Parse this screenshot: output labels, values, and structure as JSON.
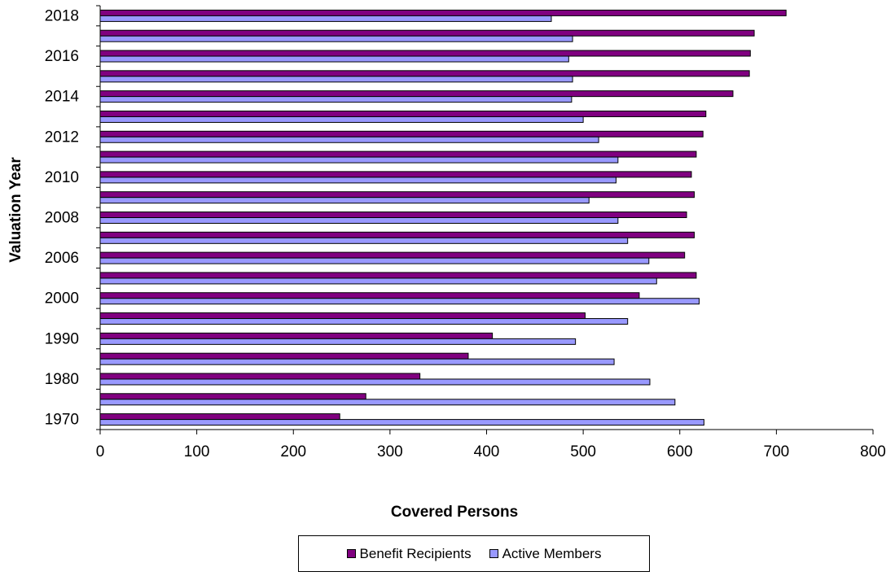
{
  "chart_data": {
    "type": "bar",
    "orientation": "horizontal",
    "title": "",
    "xlabel": "Covered Persons",
    "ylabel": "Valuation Year",
    "xlim": [
      0,
      800
    ],
    "x_ticks": [
      0,
      100,
      200,
      300,
      400,
      500,
      600,
      700,
      800
    ],
    "y_tick_labels": [
      "1970",
      "",
      "1980",
      "",
      "1990",
      "",
      "2000",
      "",
      "2006",
      "",
      "2008",
      "",
      "2010",
      "",
      "2012",
      "",
      "2014",
      "",
      "2016",
      "",
      "2018"
    ],
    "grid": false,
    "legend_position": "bottom",
    "series": [
      {
        "name": "Benefit Recipients",
        "color": "#800080",
        "values": [
          248,
          275,
          331,
          381,
          406,
          502,
          558,
          617,
          605,
          615,
          607,
          615,
          612,
          617,
          624,
          627,
          655,
          672,
          673,
          677,
          710
        ]
      },
      {
        "name": "Active Members",
        "color": "#9999ff",
        "values": [
          625,
          595,
          569,
          532,
          492,
          546,
          620,
          576,
          568,
          546,
          536,
          506,
          534,
          536,
          516,
          500,
          488,
          489,
          485,
          489,
          467
        ]
      }
    ]
  }
}
